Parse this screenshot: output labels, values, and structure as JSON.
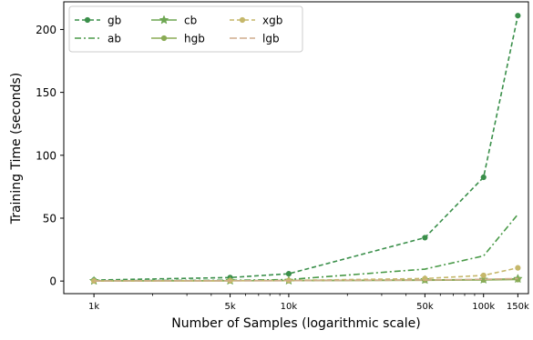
{
  "chart_data": {
    "type": "line",
    "xlabel": "Number of Samples (logarithmic scale)",
    "ylabel": "Training Time (seconds)",
    "x_scale": "log",
    "xlim": [
      700,
      170000
    ],
    "ylim": [
      -10,
      222
    ],
    "x": [
      1000,
      5000,
      10000,
      50000,
      100000,
      150000
    ],
    "x_tick_labels": [
      "1k",
      "5k",
      "10k",
      "50k",
      "100k",
      "150k"
    ],
    "y_ticks": [
      0,
      50,
      100,
      150,
      200
    ],
    "y_tick_labels": [
      "0",
      "50",
      "100",
      "150",
      "200"
    ],
    "grid": false,
    "legend": {
      "position": "top-left",
      "columns": 3
    },
    "series": [
      {
        "name": "gb",
        "color": "#3a8f4a",
        "dash": "dashed",
        "marker": "circle",
        "values": [
          0.8,
          2.8,
          5.8,
          34.5,
          82.5,
          211
        ]
      },
      {
        "name": "ab",
        "color": "#4a9a48",
        "dash": "dashdot",
        "marker": "none",
        "values": [
          0.4,
          0.6,
          1.2,
          9.5,
          20,
          53
        ]
      },
      {
        "name": "cb",
        "color": "#6da651",
        "dash": "solid",
        "marker": "star",
        "values": [
          0.2,
          0.3,
          0.4,
          0.9,
          1.2,
          1.8
        ]
      },
      {
        "name": "hgb",
        "color": "#8aab55",
        "dash": "solid",
        "marker": "circle",
        "values": [
          0.1,
          0.2,
          0.3,
          0.6,
          0.9,
          1.2
        ]
      },
      {
        "name": "xgb",
        "color": "#c5b76a",
        "dash": "dashed",
        "marker": "circle",
        "values": [
          0.1,
          0.3,
          0.5,
          2.0,
          4.5,
          10.5
        ]
      },
      {
        "name": "lgb",
        "color": "#cfab8b",
        "dash": "longdash",
        "marker": "none",
        "values": [
          0.1,
          0.2,
          0.3,
          0.8,
          1.4,
          2.0
        ]
      }
    ]
  }
}
